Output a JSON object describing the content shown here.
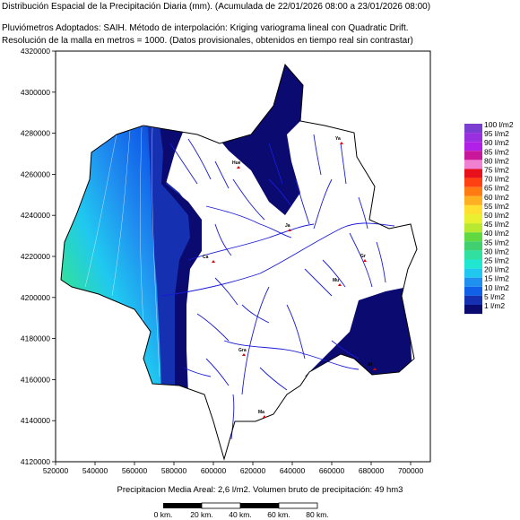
{
  "header": {
    "title": "Distribución Espacial de la Precipitación Diaria (mm). (Acumulada de 22/01/2026 08:00 a 23/01/2026 08:00)",
    "method": "Pluviómetros Adoptados: SAIH.  Método de interpolación: Kriging variograma lineal con Quadratic Drift.",
    "resolution": "Resolución de la malla en metros = 1000. (Datos provisionales, obtenidos en tiempo real sin contrastar)"
  },
  "axes": {
    "y_ticks": [
      "4320000",
      "4300000",
      "4280000",
      "4260000",
      "4240000",
      "4220000",
      "4200000",
      "4180000",
      "4160000",
      "4140000",
      "4120000"
    ],
    "x_ticks": [
      "520000",
      "540000",
      "560000",
      "580000",
      "600000",
      "620000",
      "640000",
      "660000",
      "680000",
      "700000"
    ],
    "y_range": [
      4120000,
      4320000
    ],
    "x_range": [
      520000,
      710000
    ]
  },
  "legend": {
    "items": [
      {
        "label": "100 l/m2",
        "color": "#7a3fd1"
      },
      {
        "label": "95 l/m2",
        "color": "#9a2fe0"
      },
      {
        "label": "90 l/m2",
        "color": "#b020e8"
      },
      {
        "label": "85 l/m2",
        "color": "#c8179a"
      },
      {
        "label": "80 l/m2",
        "color": "#f080d0"
      },
      {
        "label": "75 l/m2",
        "color": "#e8101a"
      },
      {
        "label": "70 l/m2",
        "color": "#ff4010"
      },
      {
        "label": "65 l/m2",
        "color": "#ff7a10"
      },
      {
        "label": "60 l/m2",
        "color": "#ffb020"
      },
      {
        "label": "55 l/m2",
        "color": "#ffe030"
      },
      {
        "label": "50 l/m2",
        "color": "#e8f030"
      },
      {
        "label": "45 l/m2",
        "color": "#b8e830"
      },
      {
        "label": "40 l/m2",
        "color": "#60d840"
      },
      {
        "label": "35 l/m2",
        "color": "#40d070"
      },
      {
        "label": "30 l/m2",
        "color": "#30e0a0"
      },
      {
        "label": "25 l/m2",
        "color": "#20e8d0"
      },
      {
        "label": "20 l/m2",
        "color": "#20c8f0"
      },
      {
        "label": "15 l/m2",
        "color": "#2090f0"
      },
      {
        "label": "10 l/m2",
        "color": "#1060e8"
      },
      {
        "label": "5 l/m2",
        "color": "#1530b0"
      },
      {
        "label": "1 l/m2",
        "color": "#0a0a70"
      }
    ]
  },
  "cities": [
    "Ya",
    "Hue",
    "Ja",
    "Gr",
    "Ca",
    "Mu",
    "Al",
    "Gra",
    "Ma"
  ],
  "footer": {
    "summary": "Precipitacion Media Areal: 2,6 l/m2. Volumen bruto de precipitación: 49 hm3"
  },
  "scale_bar": {
    "labels": [
      "0 km.",
      "20 km.",
      "40 km.",
      "60 km.",
      "80 km."
    ]
  },
  "colors": {
    "river": "#1a1ad8",
    "border": "#000000",
    "dark_zone": "#0a0a70",
    "marker": "#e00000"
  }
}
